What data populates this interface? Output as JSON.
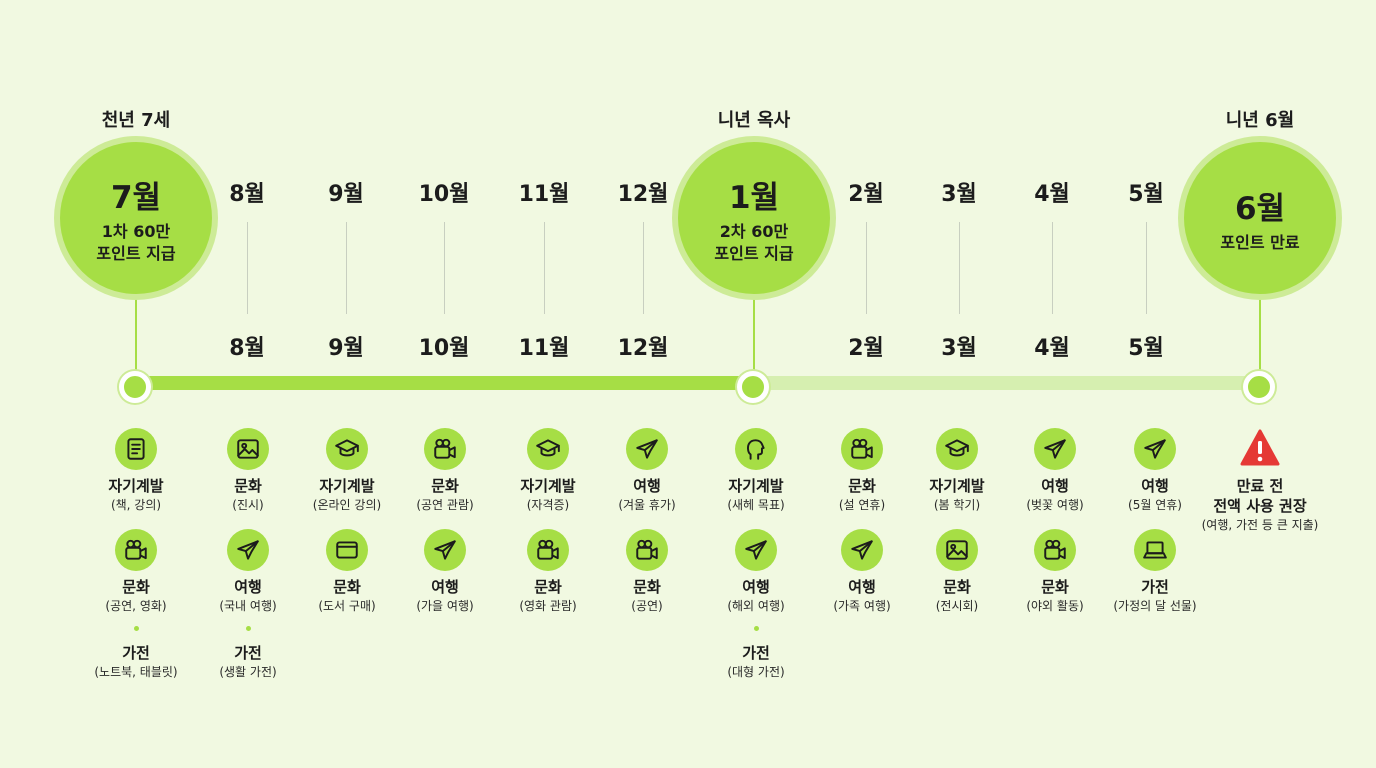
{
  "top_labels": {
    "c1": "천년 7세",
    "c2": "니년 옥사",
    "c3": "니년 6월"
  },
  "circles": {
    "c1": {
      "month": "7월",
      "desc": "1차 60만\n포인트 지급"
    },
    "c2": {
      "month": "1월",
      "desc": "2차 60만\n포인트 지급"
    },
    "c3": {
      "month": "6월",
      "desc": "포인트 만료"
    }
  },
  "months_top": [
    "8월",
    "9월",
    "10월",
    "11월",
    "12월",
    "2월",
    "3월",
    "4월",
    "5월"
  ],
  "months_bottom": [
    "8월",
    "9월",
    "10월",
    "11월",
    "12월",
    "2월",
    "3월",
    "4월",
    "5월"
  ],
  "columns": [
    {
      "items": [
        {
          "icon": "book-icon",
          "t": "자기계발",
          "s": "(책, 강의)"
        },
        {
          "icon": "camera-icon",
          "t": "문화",
          "s": "(공연, 영화)"
        },
        {
          "icon": "dot",
          "t": "가전",
          "s": "(노트북, 태블릿)"
        }
      ]
    },
    {
      "items": [
        {
          "icon": "image-icon",
          "t": "문화",
          "s": "(진시)"
        },
        {
          "icon": "airplane-icon",
          "t": "여행",
          "s": "(국내 여행)"
        },
        {
          "icon": "dot",
          "t": "가전",
          "s": "(생활 가전)"
        }
      ]
    },
    {
      "items": [
        {
          "icon": "graduation-cap-icon",
          "t": "자기계발",
          "s": "(온라인 강의)"
        },
        {
          "icon": "card-icon",
          "t": "문화",
          "s": "(도서 구매)"
        }
      ]
    },
    {
      "items": [
        {
          "icon": "camera-icon",
          "t": "문화",
          "s": "(공연 관람)"
        },
        {
          "icon": "airplane-icon",
          "t": "여행",
          "s": "(가을 여행)"
        }
      ]
    },
    {
      "items": [
        {
          "icon": "graduation-cap-icon",
          "t": "자기계발",
          "s": "(자격증)"
        },
        {
          "icon": "camera-icon",
          "t": "문화",
          "s": "(영화 관람)"
        }
      ]
    },
    {
      "items": [
        {
          "icon": "airplane-icon",
          "t": "여행",
          "s": "(겨울 휴가)"
        },
        {
          "icon": "camera-icon",
          "t": "문화",
          "s": "(공연)"
        }
      ]
    },
    {
      "items": [
        {
          "icon": "head-icon",
          "t": "자기계발",
          "s": "(새헤 목표)"
        },
        {
          "icon": "airplane-icon",
          "t": "여행",
          "s": "(해외 여행)"
        },
        {
          "icon": "dot",
          "t": "가전",
          "s": "(대형 가전)"
        }
      ]
    },
    {
      "items": [
        {
          "icon": "camera-icon",
          "t": "문화",
          "s": "(설 연휴)"
        },
        {
          "icon": "airplane-icon",
          "t": "여행",
          "s": "(가족 여행)"
        }
      ]
    },
    {
      "items": [
        {
          "icon": "graduation-cap-icon",
          "t": "자기계발",
          "s": "(봄 학기)"
        },
        {
          "icon": "image-icon",
          "t": "문화",
          "s": "(전시회)"
        }
      ]
    },
    {
      "items": [
        {
          "icon": "airplane-icon",
          "t": "여행",
          "s": "(벚꽃 여행)"
        },
        {
          "icon": "camera-icon",
          "t": "문화",
          "s": "(야외 활동)"
        }
      ]
    },
    {
      "items": [
        {
          "icon": "airplane-icon",
          "t": "여행",
          "s": "(5월 연휴)"
        },
        {
          "icon": "laptop-icon",
          "t": "가전",
          "s": "(가정의 달 선물)"
        }
      ]
    },
    {
      "items": [
        {
          "icon": "warning-icon",
          "t": "만료 전\n전액 사용 권장",
          "s": "(여행, 가전 등 큰 지출)"
        }
      ]
    }
  ],
  "colors": {
    "accent": "#a6de45",
    "halo": "#cdeb97",
    "track_light": "#d6efb0",
    "warning": "#e53935",
    "background": "#f1f9e1"
  }
}
